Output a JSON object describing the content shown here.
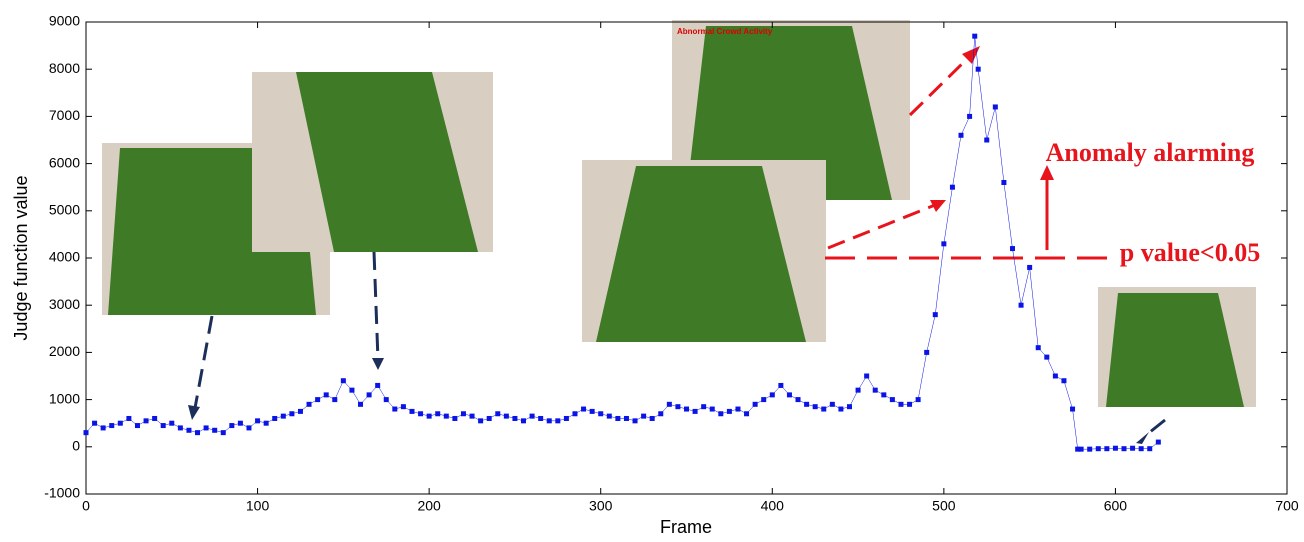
{
  "chart_data": {
    "type": "scatter",
    "x_label": "Frame",
    "y_label": "Judge function value",
    "xlim": [
      0,
      700
    ],
    "xticks": [
      0,
      100,
      200,
      300,
      400,
      500,
      600,
      700
    ],
    "ylim": [
      -1000,
      9000
    ],
    "yticks": [
      -1000,
      0,
      1000,
      2000,
      3000,
      4000,
      5000,
      6000,
      7000,
      8000,
      9000
    ],
    "grid": false,
    "threshold": 4000,
    "annotations": [
      "Anomaly alarming",
      "p value<0.05",
      "Abnormal Crowd Activity"
    ],
    "series": [
      {
        "color": "#0a14e6",
        "x": [
          0,
          5,
          10,
          15,
          20,
          25,
          30,
          35,
          40,
          45,
          50,
          55,
          60,
          65,
          70,
          75,
          80,
          85,
          90,
          95,
          100,
          105,
          110,
          115,
          120,
          125,
          130,
          135,
          140,
          145,
          150,
          155,
          160,
          165,
          170,
          175,
          180,
          185,
          190,
          195,
          200,
          205,
          210,
          215,
          220,
          225,
          230,
          235,
          240,
          245,
          250,
          255,
          260,
          265,
          270,
          275,
          280,
          285,
          290,
          295,
          300,
          305,
          310,
          315,
          320,
          325,
          330,
          335,
          340,
          345,
          350,
          355,
          360,
          365,
          370,
          375,
          380,
          385,
          390,
          395,
          400,
          405,
          410,
          415,
          420,
          425,
          430,
          435,
          440,
          445,
          450,
          455,
          460,
          465,
          470,
          475,
          480,
          485,
          490,
          495,
          500,
          505,
          510,
          515,
          518,
          520,
          525,
          530,
          535,
          540,
          545,
          550,
          555,
          560,
          565,
          570,
          575,
          578,
          580,
          585,
          590,
          595,
          600,
          605,
          610,
          615,
          620,
          625
        ],
        "values": [
          300,
          500,
          400,
          450,
          500,
          600,
          450,
          550,
          600,
          450,
          500,
          400,
          350,
          300,
          400,
          350,
          300,
          450,
          500,
          400,
          550,
          500,
          600,
          650,
          700,
          750,
          900,
          1000,
          1100,
          1000,
          1400,
          1200,
          900,
          1100,
          1300,
          1000,
          800,
          850,
          750,
          700,
          650,
          700,
          650,
          600,
          700,
          650,
          550,
          600,
          700,
          650,
          600,
          550,
          650,
          600,
          550,
          550,
          600,
          700,
          800,
          750,
          700,
          650,
          600,
          600,
          550,
          650,
          600,
          700,
          900,
          850,
          800,
          750,
          850,
          800,
          700,
          750,
          800,
          700,
          900,
          1000,
          1100,
          1300,
          1100,
          1000,
          900,
          850,
          800,
          900,
          800,
          850,
          1200,
          1500,
          1200,
          1100,
          1000,
          900,
          900,
          1000,
          2000,
          2800,
          4300,
          5500,
          6600,
          7000,
          8700,
          8000,
          6500,
          7200,
          5600,
          4200,
          3000,
          3800,
          2100,
          1900,
          1500,
          1400,
          800,
          -50,
          -50,
          -50,
          -40,
          -40,
          -30,
          -40,
          -30,
          -40,
          -40,
          100
        ]
      }
    ]
  }
}
